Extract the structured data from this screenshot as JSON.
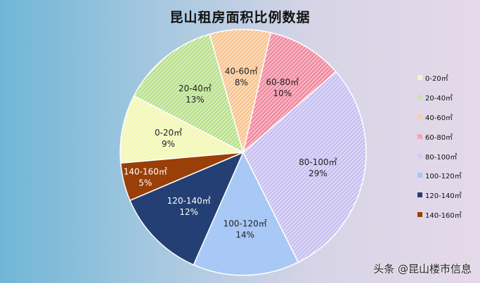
{
  "chart_data": {
    "type": "pie",
    "title": "昆山租房面积比例数据",
    "legend_position": "right",
    "categories": [
      "0-20㎡",
      "20-40㎡",
      "40-60㎡",
      "60-80㎡",
      "80-100㎡",
      "100-120㎡",
      "120-140㎡",
      "140-160㎡"
    ],
    "values": [
      9,
      13,
      8,
      10,
      29,
      14,
      12,
      5
    ],
    "value_labels": [
      "9%",
      "13%",
      "8%",
      "10%",
      "29%",
      "14%",
      "12%",
      "5%"
    ],
    "legend_labels": [
      "0-20㎡",
      "20-40㎡",
      "40-60㎡",
      "60-80㎡",
      "80-100㎡",
      "100-120㎡",
      "120-140㎡",
      "140-160㎡"
    ],
    "colors": [
      "#f2f7b0",
      "#b9e08a",
      "#f8c48f",
      "#f0899f",
      "#c6bff0",
      "#a8c8f5",
      "#243f73",
      "#9a3f08"
    ],
    "patterns": [
      "striped",
      "striped",
      "striped",
      "striped",
      "striped",
      "solid",
      "solid",
      "solid"
    ]
  },
  "watermark": "头条 @昆山楼市信息"
}
